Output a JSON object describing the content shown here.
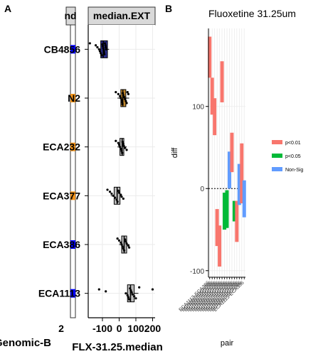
{
  "panels": {
    "a_label": "A",
    "b_label": "B"
  },
  "chart_data": [
    {
      "type": "box",
      "panel": "A",
      "facet_label_left": "nd",
      "facet_label_right": "median.EXT",
      "strains": [
        "CB4856",
        "N2",
        "ECA232",
        "ECA377",
        "ECA386",
        "ECA1113"
      ],
      "strain_colors": [
        "#0000ff",
        "#f39319",
        "#f39319",
        "#f39319",
        "#0000ff",
        "#0000ff"
      ],
      "box_colors": [
        "#2b2d8c",
        "#c48a2e",
        "#bdbdbd",
        "#bdbdbd",
        "#bdbdbd",
        "#bdbdbd"
      ],
      "boxes": [
        {
          "q1": -110,
          "median": -95,
          "q3": -70,
          "min": -125,
          "max": -60
        },
        {
          "q1": 10,
          "median": 22,
          "q3": 40,
          "min": -10,
          "max": 60
        },
        {
          "q1": 5,
          "median": 18,
          "q3": 28,
          "min": -10,
          "max": 45
        },
        {
          "q1": -30,
          "median": -12,
          "q3": 5,
          "min": -50,
          "max": 15
        },
        {
          "q1": 15,
          "median": 30,
          "q3": 45,
          "min": 0,
          "max": 60
        },
        {
          "q1": 50,
          "median": 68,
          "q3": 90,
          "min": 40,
          "max": 115
        }
      ],
      "points": [
        [
          -175,
          -140,
          -130,
          -120,
          -115,
          -110,
          -105,
          -100,
          -98,
          -95,
          -92,
          -90,
          -88,
          -85,
          -82,
          -80,
          -78
        ],
        [
          -20,
          -5,
          5,
          10,
          15,
          18,
          20,
          22,
          25,
          30,
          35,
          40,
          45,
          50,
          55
        ],
        [
          -20,
          -5,
          0,
          5,
          10,
          15,
          18,
          20,
          25,
          28,
          35,
          45
        ],
        [
          -70,
          -55,
          -45,
          -35,
          -25,
          -15,
          -10,
          -5,
          0,
          10,
          15,
          25
        ],
        [
          -10,
          0,
          10,
          15,
          20,
          25,
          30,
          35,
          40,
          45,
          55,
          60
        ],
        [
          -200,
          -120,
          -80,
          40,
          50,
          55,
          60,
          65,
          70,
          75,
          80,
          90,
          100,
          120,
          200
        ]
      ],
      "x_ticks": [
        -100,
        0,
        100,
        200
      ],
      "x_tick_labels": [
        "-100",
        "0",
        "100",
        "200"
      ],
      "xlim": [
        -185,
        215
      ],
      "x_label": "FLX-31.25.median",
      "left_strip_tick_label": "2",
      "left_axis_label": "Genomic-B",
      "grid": true
    },
    {
      "type": "range_bar",
      "panel": "B",
      "title": "Fluoxetine 31.25um",
      "y_label": "diff",
      "x_label": "pair",
      "y_ticks": [
        -100,
        0,
        100
      ],
      "y_tick_labels": [
        "-100",
        "0",
        "100"
      ],
      "ylim": [
        -108,
        195
      ],
      "reference_line": 0,
      "legend_position": "right",
      "legend": [
        {
          "label": "p<0.01",
          "color": "#f8766d"
        },
        {
          "label": "p<0.05",
          "color": "#00ba38"
        },
        {
          "label": "Non-Sig",
          "color": "#619cff"
        }
      ],
      "x_tick_label_text": "ECA1113-ECA386",
      "bars": [
        {
          "lo": 135,
          "hi": 185,
          "sig": "p<0.01"
        },
        {
          "lo": 90,
          "hi": 135,
          "sig": "p<0.01"
        },
        {
          "lo": 65,
          "hi": 110,
          "sig": "p<0.01"
        },
        {
          "lo": -70,
          "hi": -25,
          "sig": "p<0.01"
        },
        {
          "lo": -95,
          "hi": -45,
          "sig": "p<0.01"
        },
        {
          "lo": 105,
          "hi": 155,
          "sig": "p<0.01"
        },
        {
          "lo": -50,
          "hi": -5,
          "sig": "p<0.05"
        },
        {
          "lo": -48,
          "hi": -2,
          "sig": "p<0.05"
        },
        {
          "lo": 0,
          "hi": 45,
          "sig": "Non-Sig"
        },
        {
          "lo": 20,
          "hi": 68,
          "sig": "p<0.01"
        },
        {
          "lo": -40,
          "hi": -15,
          "sig": "p<0.05"
        },
        {
          "lo": -65,
          "hi": -15,
          "sig": "p<0.01"
        },
        {
          "lo": -20,
          "hi": 30,
          "sig": "Non-Sig"
        },
        {
          "lo": -18,
          "hi": 55,
          "sig": "p<0.01"
        },
        {
          "lo": -35,
          "hi": 10,
          "sig": "Non-Sig"
        }
      ]
    }
  ]
}
